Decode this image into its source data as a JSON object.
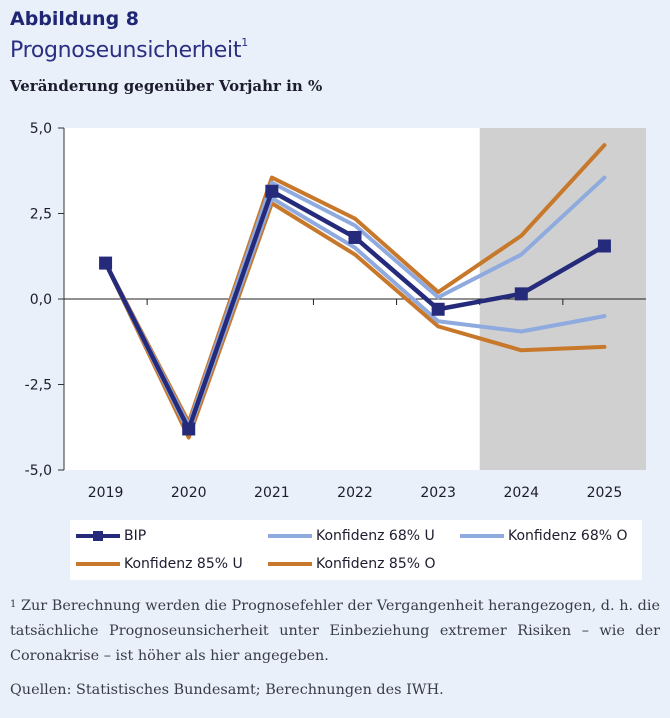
{
  "header": {
    "figure_label": "Abbildung 8",
    "title": "Prognoseunsicherheit",
    "title_footnote_mark": "1",
    "subtitle": "Veränderung gegenüber Vorjahr in %"
  },
  "chart_data": {
    "type": "line",
    "categories": [
      "2019",
      "2020",
      "2021",
      "2022",
      "2023",
      "2024",
      "2025"
    ],
    "ylim": [
      -5,
      5
    ],
    "yticks": [
      5,
      2.5,
      0,
      -2.5,
      -5
    ],
    "ytick_labels": [
      "5,0",
      "2,5",
      "0,0",
      "-2,5",
      "-5,0"
    ],
    "forecast_shading_from": "2024",
    "series": [
      {
        "name": "Konfidenz 85% U",
        "color": "#c8782a",
        "values": [
          1.05,
          -4.05,
          2.8,
          1.3,
          -0.8,
          -1.5,
          -1.4
        ]
      },
      {
        "name": "Konfidenz 85% O",
        "color": "#c8782a",
        "values": [
          1.05,
          -3.6,
          3.55,
          2.35,
          0.2,
          1.85,
          4.5
        ]
      },
      {
        "name": "Konfidenz 68% U",
        "color": "#8eaade",
        "values": [
          1.05,
          -3.9,
          2.95,
          1.5,
          -0.65,
          -0.95,
          -0.5
        ]
      },
      {
        "name": "Konfidenz 68% O",
        "color": "#8eaade",
        "values": [
          1.05,
          -3.7,
          3.4,
          2.15,
          0.05,
          1.3,
          3.55
        ]
      },
      {
        "name": "BIP",
        "color": "#252a7a",
        "values": [
          1.05,
          -3.8,
          3.15,
          1.8,
          -0.3,
          0.15,
          1.55
        ],
        "markers": true
      }
    ]
  },
  "legend": {
    "items": [
      {
        "label": "BIP",
        "color": "#252a7a",
        "marker": true
      },
      {
        "label": "Konfidenz 68% U",
        "color": "#8eaade",
        "marker": false
      },
      {
        "label": "Konfidenz 68% O",
        "color": "#8eaade",
        "marker": false
      },
      {
        "label": "Konfidenz 85% U",
        "color": "#c8782a",
        "marker": false
      },
      {
        "label": "Konfidenz 85% O",
        "color": "#c8782a",
        "marker": false
      }
    ]
  },
  "footnote": {
    "mark": "1",
    "text": "Zur Berechnung werden die Prognosefehler der Vergangenheit herangezogen, d. h. die tatsächliche Prognoseunsicherheit unter Einbeziehung extremer Risiken – wie der Coronakrise – ist höher als hier angegeben."
  },
  "sources": "Quellen: Statistisches Bundesamt; Berechnungen des IWH."
}
